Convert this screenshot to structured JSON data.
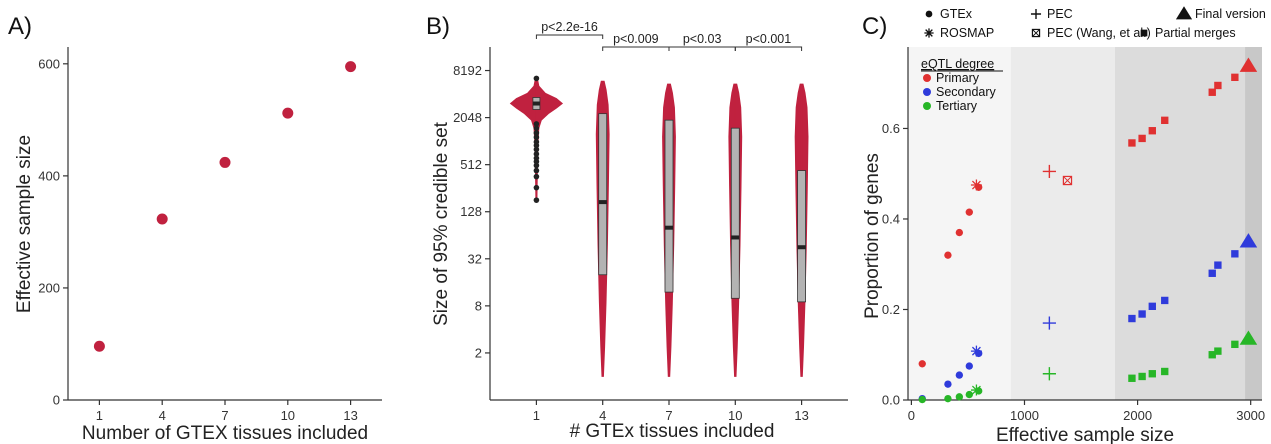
{
  "chart_data": [
    {
      "panel_label": "A)",
      "type": "scatter",
      "title": "",
      "xlabel": "Number of GTEX tissues included",
      "ylabel": "Effective sample size",
      "x_ticks": [
        1,
        4,
        7,
        10,
        13
      ],
      "y_ticks": [
        0,
        200,
        400,
        600
      ],
      "xlim": [
        -0.5,
        14.5
      ],
      "ylim": [
        0,
        630
      ],
      "point_color": "#c0213f",
      "x": [
        1,
        4,
        7,
        10,
        13
      ],
      "y": [
        96,
        323,
        424,
        512,
        595
      ]
    },
    {
      "panel_label": "B)",
      "type": "violin",
      "title": "",
      "xlabel": "# GTEx tissues included",
      "ylabel": "Size of 95% credible set",
      "y_scale": "log2",
      "y_ticks": [
        "2",
        "8",
        "32",
        "128",
        "512",
        "2048",
        "8192"
      ],
      "y_tick_values": [
        2,
        8,
        32,
        128,
        512,
        2048,
        8192
      ],
      "ylim": [
        0.5,
        16384
      ],
      "categories": [
        "1",
        "4",
        "7",
        "10",
        "13"
      ],
      "violin_color": "#c0213f",
      "box_color": "#b3b3b3",
      "boxes": [
        {
          "category": "1",
          "q1": 2600,
          "median": 3100,
          "q3": 3700,
          "whisker_low": 180,
          "whisker_high": 6500,
          "max": 6500,
          "min": 180
        },
        {
          "category": "4",
          "q1": 20,
          "median": 170,
          "q3": 2300,
          "whisker_low": 1,
          "whisker_high": 6000,
          "max": 6000,
          "min": 1
        },
        {
          "category": "7",
          "q1": 12,
          "median": 80,
          "q3": 1900,
          "whisker_low": 1,
          "whisker_high": 5500,
          "max": 5500,
          "min": 1
        },
        {
          "category": "10",
          "q1": 10,
          "median": 60,
          "q3": 1500,
          "whisker_low": 1,
          "whisker_high": 5500,
          "max": 5500,
          "min": 1
        },
        {
          "category": "13",
          "q1": 9,
          "median": 45,
          "q3": 430,
          "whisker_low": 1,
          "whisker_high": 5500,
          "max": 5500,
          "min": 1
        }
      ],
      "outliers_category_1": [
        1700,
        1500,
        1300,
        1150,
        1000,
        900,
        800,
        700,
        620,
        560,
        500,
        430,
        360,
        260,
        180
      ],
      "comparisons": [
        {
          "from": "1",
          "to": "4",
          "label": "p<2.2e-16"
        },
        {
          "from": "4",
          "to": "7",
          "label": "p<0.009"
        },
        {
          "from": "7",
          "to": "10",
          "label": "p<0.03"
        },
        {
          "from": "10",
          "to": "13",
          "label": "p<0.001"
        }
      ]
    },
    {
      "panel_label": "C)",
      "type": "scatter",
      "title": "",
      "xlabel": "Effective sample size",
      "ylabel": "Proportion of genes",
      "x_ticks": [
        0,
        1000,
        2000,
        3000
      ],
      "y_ticks": [
        "0.0",
        "0.2",
        "0.4",
        "0.6"
      ],
      "y_tick_values": [
        0,
        0.2,
        0.4,
        0.6
      ],
      "xlim": [
        -30,
        3100
      ],
      "ylim": [
        0,
        0.78
      ],
      "background_bands": [
        {
          "from": -30,
          "to": 880,
          "color": "#f5f5f5"
        },
        {
          "from": 880,
          "to": 1800,
          "color": "#ebebeb"
        },
        {
          "from": 1800,
          "to": 2950,
          "color": "#dcdcdc"
        },
        {
          "from": 2950,
          "to": 3100,
          "color": "#c8c8c8"
        }
      ],
      "legend_title": "eQTL degree",
      "shape_legend": [
        {
          "label": "GTEx",
          "shape": "circle"
        },
        {
          "label": "PEC",
          "shape": "plus"
        },
        {
          "label": "Final version",
          "shape": "triangle"
        },
        {
          "label": "ROSMAP",
          "shape": "asterisk"
        },
        {
          "label": "PEC (Wang, et al.)",
          "shape": "boxx"
        },
        {
          "label": "Partial merges",
          "shape": "square"
        }
      ],
      "series": [
        {
          "name": "Primary",
          "color": "#e03131",
          "gtex": [
            [
              96,
              0.08
            ],
            [
              323,
              0.32
            ],
            [
              424,
              0.37
            ],
            [
              512,
              0.415
            ],
            [
              595,
              0.47
            ]
          ],
          "rosmap": [
            [
              575,
              0.475
            ]
          ],
          "pec": [
            [
              1220,
              0.505
            ]
          ],
          "pec_wang": [
            [
              1380,
              0.485
            ]
          ],
          "partial": [
            [
              1950,
              0.568
            ],
            [
              2040,
              0.578
            ],
            [
              2130,
              0.595
            ],
            [
              2240,
              0.618
            ],
            [
              2660,
              0.68
            ],
            [
              2710,
              0.695
            ],
            [
              2860,
              0.713
            ]
          ],
          "final": [
            [
              2980,
              0.738
            ]
          ]
        },
        {
          "name": "Secondary",
          "color": "#2f3bdb",
          "gtex": [
            [
              96,
              0.003
            ],
            [
              323,
              0.035
            ],
            [
              424,
              0.055
            ],
            [
              512,
              0.075
            ],
            [
              595,
              0.103
            ]
          ],
          "rosmap": [
            [
              575,
              0.108
            ]
          ],
          "pec": [
            [
              1220,
              0.17
            ]
          ],
          "pec_wang": [],
          "partial": [
            [
              1950,
              0.18
            ],
            [
              2040,
              0.19
            ],
            [
              2130,
              0.207
            ],
            [
              2240,
              0.22
            ],
            [
              2660,
              0.28
            ],
            [
              2710,
              0.298
            ],
            [
              2860,
              0.323
            ]
          ],
          "final": [
            [
              2980,
              0.35
            ]
          ]
        },
        {
          "name": "Tertiary",
          "color": "#27b627",
          "gtex": [
            [
              96,
              0.001
            ],
            [
              323,
              0.003
            ],
            [
              424,
              0.007
            ],
            [
              512,
              0.012
            ],
            [
              595,
              0.02
            ]
          ],
          "rosmap": [
            [
              575,
              0.022
            ]
          ],
          "pec": [
            [
              1220,
              0.058
            ]
          ],
          "pec_wang": [],
          "partial": [
            [
              1950,
              0.048
            ],
            [
              2040,
              0.052
            ],
            [
              2130,
              0.058
            ],
            [
              2240,
              0.063
            ],
            [
              2660,
              0.1
            ],
            [
              2710,
              0.108
            ],
            [
              2860,
              0.123
            ]
          ],
          "final": [
            [
              2980,
              0.135
            ]
          ]
        }
      ]
    }
  ]
}
